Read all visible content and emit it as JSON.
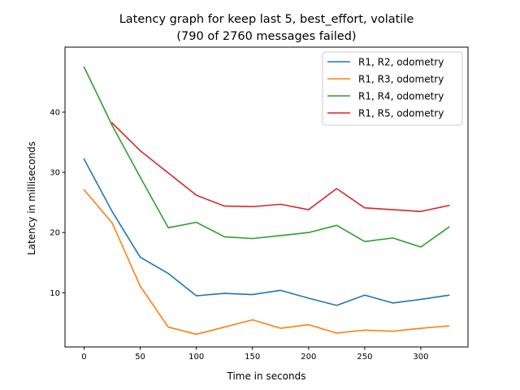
{
  "chart_data": {
    "type": "line",
    "title": "Latency graph for keep last 5, best_effort, volatile",
    "subtitle": "(790 of 2760 messages failed)",
    "xlabel": "Time in seconds",
    "ylabel": "Latency in milliseconds",
    "xlim": [
      -17,
      342
    ],
    "ylim": [
      1.0,
      50.8
    ],
    "xticks": [
      0,
      50,
      100,
      150,
      200,
      250,
      300
    ],
    "yticks": [
      10,
      20,
      30,
      40
    ],
    "grid": false,
    "legend_position": "top-right",
    "series": [
      {
        "name": "R1, R2, odometry",
        "color": "#1f77b4",
        "x": [
          0,
          25,
          50,
          75,
          100,
          125,
          150,
          175,
          200,
          225,
          250,
          275,
          300,
          325
        ],
        "y": [
          32.2,
          23.5,
          15.9,
          13.2,
          9.5,
          9.9,
          9.7,
          10.4,
          9.1,
          7.9,
          9.6,
          8.3,
          8.9,
          9.6
        ]
      },
      {
        "name": "R1, R3, odometry",
        "color": "#ff7f0e",
        "x": [
          0,
          25,
          50,
          75,
          100,
          125,
          150,
          175,
          200,
          225,
          250,
          275,
          300,
          325
        ],
        "y": [
          27.1,
          21.6,
          11.1,
          4.3,
          3.1,
          4.3,
          5.5,
          4.1,
          4.7,
          3.3,
          3.8,
          3.6,
          4.1,
          4.5
        ]
      },
      {
        "name": "R1, R4, odometry",
        "color": "#2ca02c",
        "x": [
          0,
          25,
          50,
          75,
          100,
          125,
          150,
          175,
          200,
          225,
          250,
          275,
          300,
          325
        ],
        "y": [
          47.5,
          37.8,
          29.2,
          20.8,
          21.7,
          19.3,
          19.0,
          19.5,
          20.0,
          21.2,
          18.5,
          19.1,
          17.6,
          20.9
        ]
      },
      {
        "name": "R1, R5, odometry",
        "color": "#d62728",
        "x": [
          25,
          50,
          75,
          100,
          125,
          150,
          175,
          200,
          225,
          250,
          275,
          300,
          325
        ],
        "y": [
          38.2,
          33.6,
          29.9,
          26.2,
          24.4,
          24.3,
          24.7,
          23.8,
          27.3,
          24.1,
          23.8,
          23.5,
          24.5
        ]
      }
    ]
  }
}
